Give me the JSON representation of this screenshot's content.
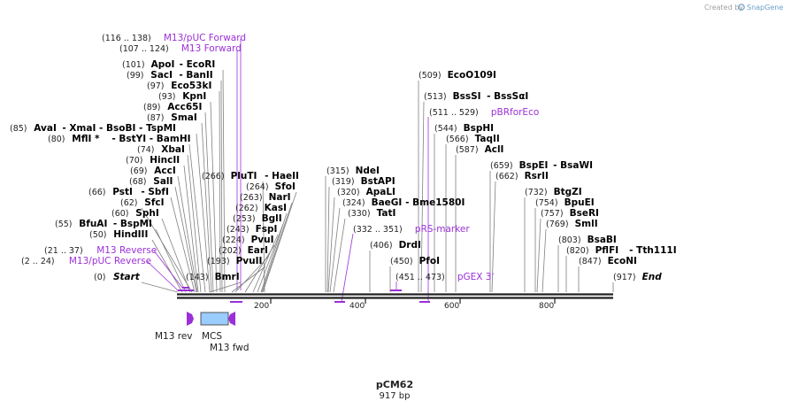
{
  "header": {
    "created_by": "Created by",
    "brand": "SnapGene"
  },
  "plasmid": {
    "name": "pCM62",
    "length_label": "917 bp"
  },
  "ruler": {
    "ticks": [
      "200",
      "400",
      "600",
      "800"
    ]
  },
  "colors": {
    "primer": "#9b30d8",
    "mcs": "#99ccff",
    "line": "#808080",
    "backbone": "#222222"
  },
  "labels": [
    {
      "id": "m13puc-fwd-long",
      "pos": "(116 .. 138)",
      "name": "M13/pUC Forward",
      "kind": "primer"
    },
    {
      "id": "m13-fwd",
      "pos": "(107 .. 124)",
      "name": "M13 Forward",
      "kind": "primer"
    },
    {
      "id": "apoi",
      "pos": "(101)",
      "name": "ApoI",
      "extra": "- EcoRI",
      "kind": "enzyme"
    },
    {
      "id": "saci",
      "pos": "(99)",
      "name": "SacI",
      "extra": "- BanII",
      "kind": "enzyme"
    },
    {
      "id": "eco53ki",
      "pos": "(97)",
      "name": "Eco53kI",
      "kind": "enzyme"
    },
    {
      "id": "kpni",
      "pos": "(93)",
      "name": "KpnI",
      "kind": "enzyme"
    },
    {
      "id": "acc65i",
      "pos": "(89)",
      "name": "Acc65I",
      "kind": "enzyme"
    },
    {
      "id": "smai",
      "pos": "(87)",
      "name": "SmaI",
      "kind": "enzyme"
    },
    {
      "id": "avai",
      "pos": "(85)",
      "name": "AvaI",
      "extra": "- XmaI   - BsoBI   - TspMI",
      "kind": "enzyme"
    },
    {
      "id": "mfli",
      "pos": "(80)",
      "name": "MflI *",
      "extra": "- BstYI   - BamHI",
      "kind": "enzyme"
    },
    {
      "id": "xbai",
      "pos": "(74)",
      "name": "XbaI",
      "kind": "enzyme"
    },
    {
      "id": "hincii",
      "pos": "(70)",
      "name": "HincII",
      "kind": "enzyme"
    },
    {
      "id": "acci",
      "pos": "(69)",
      "name": "AccI",
      "kind": "enzyme"
    },
    {
      "id": "sali",
      "pos": "(68)",
      "name": "SalI",
      "kind": "enzyme"
    },
    {
      "id": "psti",
      "pos": "(66)",
      "name": "PstI",
      "extra": "- SbfI",
      "kind": "enzyme"
    },
    {
      "id": "sfci",
      "pos": "(62)",
      "name": "SfcI",
      "kind": "enzyme"
    },
    {
      "id": "sphi",
      "pos": "(60)",
      "name": "SphI",
      "kind": "enzyme"
    },
    {
      "id": "bfuai",
      "pos": "(55)",
      "name": "BfuAI",
      "extra": "- BspMI",
      "kind": "enzyme"
    },
    {
      "id": "hindiii",
      "pos": "(50)",
      "name": "HindIII",
      "kind": "enzyme"
    },
    {
      "id": "m13-rev",
      "pos": "(21 .. 37)",
      "name": "M13 Reverse",
      "kind": "primer"
    },
    {
      "id": "m13puc-rev",
      "pos": "(2 .. 24)",
      "name": "M13/pUC Reverse",
      "kind": "primer"
    },
    {
      "id": "start",
      "pos": "(0)",
      "name": "Start",
      "kind": "italic"
    },
    {
      "id": "pluti",
      "pos": "(266)",
      "name": "PluTI",
      "extra": "- HaeII",
      "kind": "enzyme"
    },
    {
      "id": "sfoi",
      "pos": "(264)",
      "name": "SfoI",
      "kind": "enzyme"
    },
    {
      "id": "nari",
      "pos": "(263)",
      "name": "NarI",
      "kind": "enzyme"
    },
    {
      "id": "kasi",
      "pos": "(262)",
      "name": "KasI",
      "kind": "enzyme"
    },
    {
      "id": "bgli",
      "pos": "(253)",
      "name": "BglI",
      "kind": "enzyme"
    },
    {
      "id": "fspi",
      "pos": "(243)",
      "name": "FspI",
      "kind": "enzyme"
    },
    {
      "id": "pvui",
      "pos": "(224)",
      "name": "PvuI",
      "kind": "enzyme"
    },
    {
      "id": "eari",
      "pos": "(202)",
      "name": "EarI",
      "kind": "enzyme"
    },
    {
      "id": "pvuii",
      "pos": "(193)",
      "name": "PvuII",
      "kind": "enzyme"
    },
    {
      "id": "bmri",
      "pos": "(143)",
      "name": "BmrI",
      "kind": "enzyme"
    },
    {
      "id": "ndei",
      "pos": "(315)",
      "name": "NdeI",
      "kind": "enzyme"
    },
    {
      "id": "bstapi",
      "pos": "(319)",
      "name": "BstAPI",
      "kind": "enzyme"
    },
    {
      "id": "apali",
      "pos": "(320)",
      "name": "ApaLI",
      "kind": "enzyme"
    },
    {
      "id": "baegi",
      "pos": "(324)",
      "name": "BaeGI",
      "extra": "- Bme1580I",
      "kind": "enzyme"
    },
    {
      "id": "tati",
      "pos": "(330)",
      "name": "TatI",
      "kind": "enzyme"
    },
    {
      "id": "prs-marker",
      "pos": "(332 .. 351)",
      "name": "pRS-marker",
      "kind": "primer"
    },
    {
      "id": "drdi",
      "pos": "(406)",
      "name": "DrdI",
      "kind": "enzyme"
    },
    {
      "id": "pfoi",
      "pos": "(450)",
      "name": "PfoI",
      "kind": "enzyme"
    },
    {
      "id": "pgex3",
      "pos": "(451 .. 473)",
      "name": "pGEX 3'",
      "kind": "primer"
    },
    {
      "id": "eco0109i",
      "pos": "(509)",
      "name": "EcoO109I",
      "kind": "enzyme"
    },
    {
      "id": "bssi",
      "pos": "(513)",
      "name": "BssSI",
      "extra": "- BssSαI",
      "kind": "enzyme"
    },
    {
      "id": "pbrforeco",
      "pos": "(511 .. 529)",
      "name": "pBRforEco",
      "kind": "primer"
    },
    {
      "id": "bsphi",
      "pos": "(544)",
      "name": "BspHI",
      "kind": "enzyme"
    },
    {
      "id": "taqii",
      "pos": "(566)",
      "name": "TaqII",
      "kind": "enzyme"
    },
    {
      "id": "acli",
      "pos": "(587)",
      "name": "AclI",
      "kind": "enzyme"
    },
    {
      "id": "bspei",
      "pos": "(659)",
      "name": "BspEI",
      "extra": "- BsaWI",
      "kind": "enzyme"
    },
    {
      "id": "rsrii",
      "pos": "(662)",
      "name": "RsrII",
      "kind": "enzyme"
    },
    {
      "id": "btgzi",
      "pos": "(732)",
      "name": "BtgZI",
      "kind": "enzyme"
    },
    {
      "id": "bpuei",
      "pos": "(754)",
      "name": "BpuEI",
      "kind": "enzyme"
    },
    {
      "id": "bseri",
      "pos": "(757)",
      "name": "BseRI",
      "kind": "enzyme"
    },
    {
      "id": "smli",
      "pos": "(769)",
      "name": "SmlI",
      "kind": "enzyme"
    },
    {
      "id": "bsabi",
      "pos": "(803)",
      "name": "BsaBI",
      "kind": "enzyme"
    },
    {
      "id": "pflfi",
      "pos": "(820)",
      "name": "PflFI",
      "extra": "- Tth111I",
      "kind": "enzyme"
    },
    {
      "id": "econi",
      "pos": "(847)",
      "name": "EcoNI",
      "kind": "enzyme"
    },
    {
      "id": "end",
      "pos": "(917)",
      "name": "End",
      "kind": "italic"
    }
  ],
  "features": {
    "m13rev": "M13 rev",
    "mcs": "MCS",
    "m13fwd": "M13 fwd"
  }
}
